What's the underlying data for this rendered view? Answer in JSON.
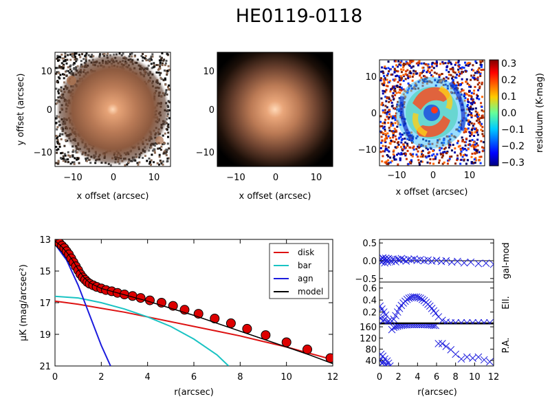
{
  "title": "HE0119-0118",
  "panels": {
    "image": {
      "xlabel": "x offset (arcsec)",
      "ylabel": "y offset (arcsec)",
      "xticks": [
        "−10",
        "0",
        "10"
      ],
      "yticks": [
        "10",
        "0",
        "−10"
      ]
    },
    "model": {
      "xlabel": "x offset (arcsec)",
      "yticks": [
        "10",
        "0",
        "−10"
      ],
      "xticks": [
        "−10",
        "0",
        "10"
      ]
    },
    "residual": {
      "xlabel": "x offset (arcsec)",
      "yticks": [
        "10",
        "0",
        "−10"
      ],
      "xticks": [
        "−10",
        "0",
        "10"
      ],
      "colorbar": {
        "label": "residuum (K-mag)",
        "ticks": [
          "0.3",
          "0.2",
          "0.1",
          "0.0",
          "−0.1",
          "−0.2",
          "−0.3"
        ],
        "range": [
          -0.3,
          0.3
        ]
      }
    }
  },
  "chart_data": [
    {
      "type": "line",
      "xlabel": "r(arcsec)",
      "ylabel": "μK (mag/arcsec²)",
      "xlim": [
        0,
        12
      ],
      "ylim": [
        21,
        13
      ],
      "xticks": [
        "0",
        "2",
        "4",
        "6",
        "8",
        "10",
        "12"
      ],
      "yticks": [
        "13",
        "15",
        "17",
        "19",
        "21"
      ],
      "series": [
        {
          "name": "disk",
          "color": "#dd1111",
          "x": [
            0,
            1,
            2,
            3,
            4,
            5,
            6,
            7,
            8,
            9,
            10,
            11,
            12
          ],
          "y": [
            16.9,
            17.1,
            17.35,
            17.6,
            17.9,
            18.2,
            18.5,
            18.8,
            19.1,
            19.45,
            19.8,
            20.2,
            20.6
          ]
        },
        {
          "name": "bar",
          "color": "#19c3c3",
          "x": [
            0,
            1,
            2,
            3,
            4,
            5,
            6,
            7,
            7.5
          ],
          "y": [
            16.6,
            16.7,
            17.0,
            17.4,
            17.9,
            18.5,
            19.3,
            20.3,
            21
          ]
        },
        {
          "name": "agn",
          "color": "#1b1bdd",
          "x": [
            0,
            0.5,
            1,
            1.5,
            2,
            2.4
          ],
          "y": [
            13.3,
            14.3,
            15.9,
            17.8,
            19.7,
            21
          ]
        },
        {
          "name": "model",
          "color": "#000000",
          "x": [
            0,
            0.25,
            0.5,
            0.75,
            1,
            1.25,
            1.5,
            2,
            2.5,
            3,
            4,
            5,
            6,
            7,
            8,
            9,
            10,
            11,
            12
          ],
          "y": [
            13.1,
            13.4,
            13.8,
            14.3,
            14.9,
            15.4,
            15.75,
            16.1,
            16.3,
            16.5,
            16.9,
            17.35,
            17.8,
            18.3,
            18.8,
            19.3,
            19.8,
            20.3,
            20.85
          ]
        }
      ],
      "points": {
        "name": "data",
        "color": "#dd0000",
        "x": [
          0.1,
          0.2,
          0.3,
          0.4,
          0.5,
          0.6,
          0.7,
          0.8,
          0.9,
          1.0,
          1.1,
          1.2,
          1.3,
          1.4,
          1.5,
          1.65,
          1.8,
          2.0,
          2.2,
          2.45,
          2.7,
          3.0,
          3.35,
          3.7,
          4.1,
          4.6,
          5.1,
          5.6,
          6.2,
          6.9,
          7.6,
          8.3,
          9.1,
          10.0,
          10.9,
          11.9
        ],
        "y": [
          13.15,
          13.25,
          13.4,
          13.55,
          13.75,
          13.95,
          14.2,
          14.45,
          14.7,
          14.95,
          15.2,
          15.4,
          15.55,
          15.7,
          15.8,
          15.9,
          16.0,
          16.1,
          16.2,
          16.28,
          16.38,
          16.48,
          16.58,
          16.7,
          16.85,
          17.0,
          17.2,
          17.45,
          17.7,
          18.0,
          18.3,
          18.65,
          19.05,
          19.5,
          19.95,
          20.5
        ]
      }
    },
    {
      "type": "scatter",
      "ylabel": "gal-mod",
      "xlim": [
        0,
        12
      ],
      "ylim": [
        -0.6,
        0.6
      ],
      "yticks": [
        "0.5",
        "0.0",
        "−0.5"
      ],
      "color": "#1b1bdd",
      "x": [
        0.05,
        0.15,
        0.25,
        0.35,
        0.45,
        0.55,
        0.65,
        0.75,
        0.85,
        0.95,
        1.1,
        1.25,
        1.4,
        1.55,
        1.7,
        1.9,
        2.1,
        2.3,
        2.55,
        2.8,
        3.05,
        3.35,
        3.65,
        3.95,
        4.3,
        4.7,
        5.1,
        5.5,
        6.0,
        6.5,
        7.0,
        7.6,
        8.2,
        8.9,
        9.6,
        10.4,
        11.2,
        12.0
      ],
      "y": [
        0.0,
        0.05,
        -0.04,
        0.08,
        0.03,
        -0.06,
        0.07,
        0.02,
        -0.04,
        0.06,
        0.03,
        -0.02,
        0.05,
        0.01,
        -0.03,
        0.04,
        0.02,
        0.06,
        0.03,
        -0.01,
        0.04,
        0.02,
        0.05,
        0.01,
        0.03,
        0.0,
        0.02,
        -0.01,
        0.01,
        -0.02,
        0.0,
        -0.04,
        -0.02,
        -0.06,
        -0.04,
        -0.08,
        -0.07,
        -0.1
      ]
    },
    {
      "type": "scatter",
      "ylabel": "Ell.",
      "xlim": [
        0,
        12
      ],
      "ylim": [
        0.0,
        0.7
      ],
      "yticks": [
        "0.6",
        "0.4",
        "0.2"
      ],
      "color": "#1b1bdd",
      "x": [
        0.05,
        0.15,
        0.25,
        0.35,
        0.45,
        0.55,
        0.65,
        0.8,
        0.95,
        1.1,
        1.3,
        1.5,
        1.7,
        1.9,
        2.1,
        2.3,
        2.5,
        2.7,
        2.9,
        3.1,
        3.3,
        3.5,
        3.7,
        3.9,
        4.1,
        4.3,
        4.5,
        4.7,
        4.9,
        5.1,
        5.3,
        5.5,
        5.7,
        5.9,
        6.2,
        6.6,
        7.0,
        7.5,
        8.0,
        8.6,
        9.2,
        9.8,
        10.4,
        11.0,
        11.6
      ],
      "y": [
        0.3,
        0.1,
        0.25,
        0.05,
        0.2,
        0.08,
        0.15,
        0.02,
        0.05,
        0.02,
        0.05,
        0.08,
        0.14,
        0.2,
        0.26,
        0.31,
        0.35,
        0.38,
        0.41,
        0.43,
        0.44,
        0.45,
        0.45,
        0.45,
        0.44,
        0.43,
        0.41,
        0.39,
        0.36,
        0.33,
        0.3,
        0.26,
        0.22,
        0.18,
        0.12,
        0.06,
        0.03,
        0.02,
        0.02,
        0.02,
        0.02,
        0.02,
        0.02,
        0.02,
        0.02
      ]
    },
    {
      "type": "scatter",
      "xlabel": "r(arcsec)",
      "ylabel": "P.A.",
      "xlim": [
        0,
        12
      ],
      "ylim": [
        20,
        170
      ],
      "xticks": [
        "0",
        "2",
        "4",
        "6",
        "8",
        "10",
        "12"
      ],
      "yticks": [
        "160",
        "120",
        "80",
        "40"
      ],
      "color": "#1b1bdd",
      "x": [
        0.05,
        0.15,
        0.25,
        0.35,
        0.45,
        0.55,
        0.65,
        0.8,
        0.95,
        1.1,
        1.3,
        1.5,
        1.7,
        1.9,
        2.1,
        2.3,
        2.5,
        2.7,
        2.9,
        3.1,
        3.3,
        3.5,
        3.7,
        3.9,
        4.1,
        4.3,
        4.5,
        4.7,
        4.9,
        5.1,
        5.3,
        5.5,
        5.7,
        5.9,
        6.2,
        6.6,
        7.0,
        7.5,
        8.0,
        8.6,
        9.2,
        9.8,
        10.4,
        11.0,
        11.6
      ],
      "y": [
        40,
        62,
        30,
        55,
        35,
        45,
        25,
        38,
        30,
        20,
        150,
        158,
        160,
        162,
        164,
        165,
        166,
        167,
        167,
        168,
        168,
        168,
        168,
        168,
        168,
        168,
        168,
        168,
        168,
        167,
        167,
        166,
        165,
        165,
        100,
        100,
        90,
        78,
        62,
        45,
        52,
        48,
        52,
        42,
        35
      ]
    }
  ]
}
